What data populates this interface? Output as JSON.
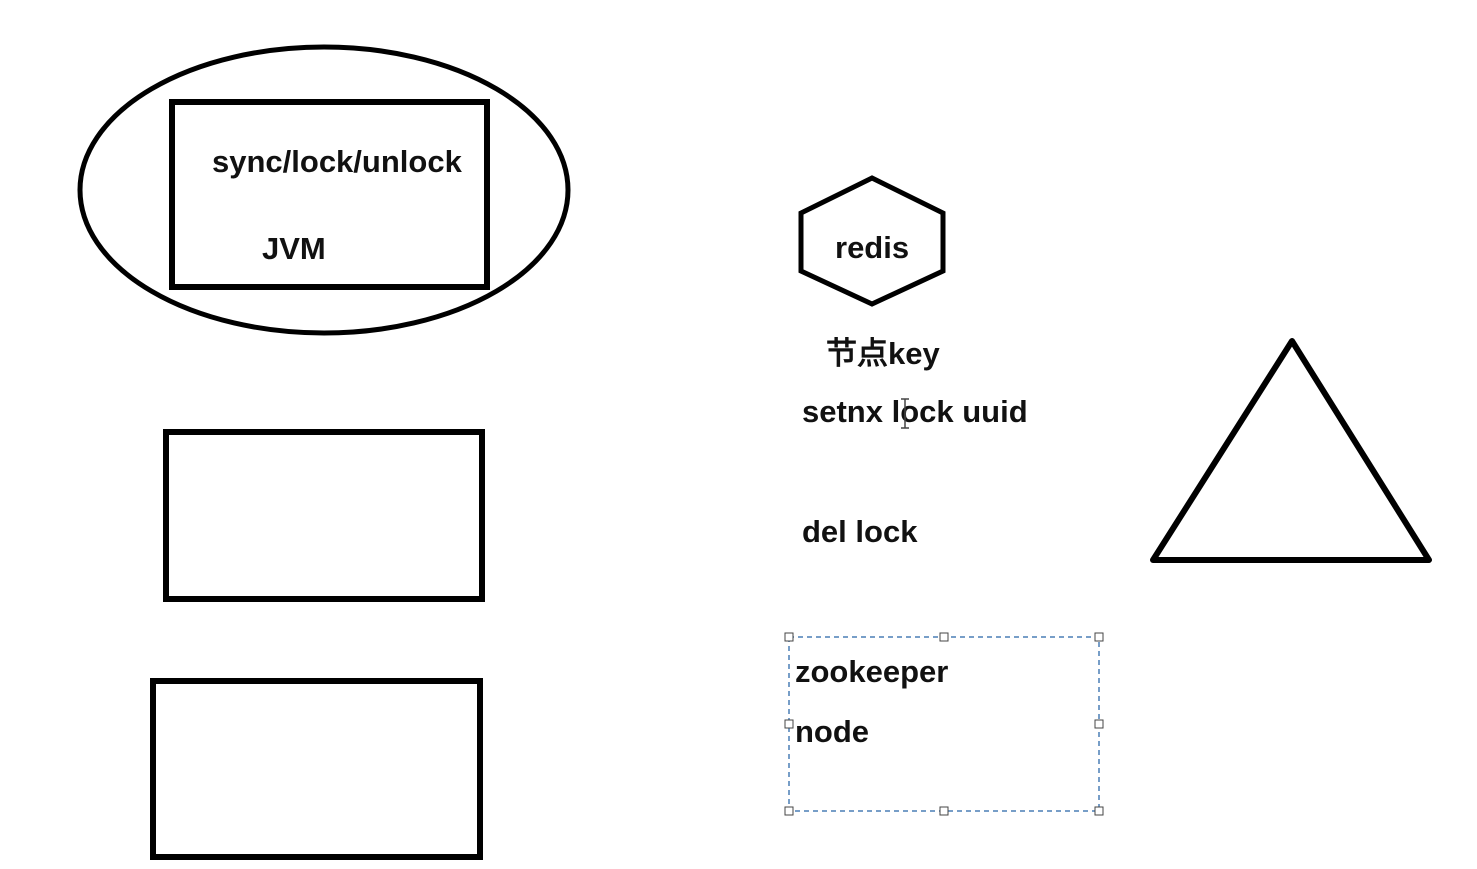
{
  "jvm_group": {
    "method_text": "sync/lock/unlock",
    "jvm_text": "JVM"
  },
  "redis_group": {
    "node_text": "redis",
    "key_text": "节点key",
    "setnx_text": "setnx lock uuid",
    "del_text": "del lock"
  },
  "zookeeper_group": {
    "title_text": "zookeeper",
    "node_text": "node"
  },
  "colors": {
    "stroke": "#000000",
    "text": "#111111",
    "selection": "#4a7fb5"
  }
}
